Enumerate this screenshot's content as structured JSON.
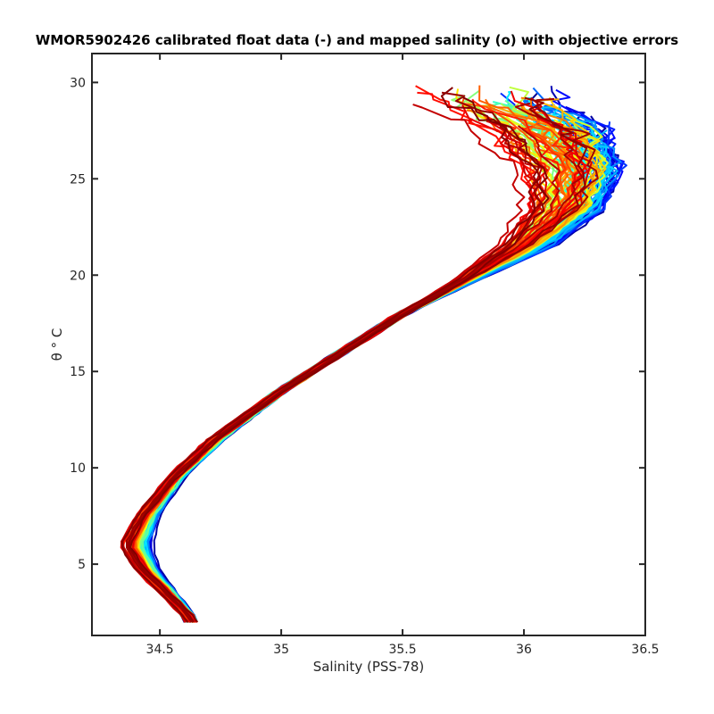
{
  "chart_data": {
    "type": "line",
    "title": "WMOR5902426 calibrated float data (-) and mapped salinity (o) with objective errors",
    "xlabel": "Salinity (PSS-78)",
    "ylabel": "θ ° C",
    "xlim": [
      34.22,
      36.5
    ],
    "ylim": [
      1.3,
      31.5
    ],
    "xticks": [
      34.5,
      35,
      35.5,
      36,
      36.5
    ],
    "yticks": [
      5,
      10,
      15,
      20,
      25,
      30
    ],
    "xtick_labels": [
      "34.5",
      "35",
      "35.5",
      "36",
      "36.5"
    ],
    "ytick_labels": [
      "5",
      "10",
      "15",
      "20",
      "25",
      "30"
    ],
    "grid": false,
    "legend": "none",
    "colormap": "jet",
    "profile_count": 120,
    "representative_profile_early": {
      "salinity": [
        34.63,
        34.55,
        34.48,
        34.45,
        34.48,
        34.58,
        34.75,
        35.0,
        35.25,
        35.5,
        35.8,
        36.1,
        36.3,
        36.35,
        36.28,
        36.1
      ],
      "theta": [
        2.1,
        3.5,
        4.7,
        6.0,
        7.5,
        9.5,
        11.5,
        14.0,
        16.0,
        18.0,
        19.8,
        21.5,
        23.5,
        25.5,
        27.5,
        29.0
      ]
    },
    "representative_profile_late": {
      "salinity": [
        34.63,
        34.52,
        34.42,
        34.35,
        34.42,
        34.55,
        34.72,
        35.0,
        35.25,
        35.5,
        35.75,
        35.95,
        36.1,
        36.12,
        36.0,
        35.8
      ],
      "theta": [
        2.1,
        3.5,
        4.8,
        6.0,
        7.5,
        9.5,
        11.5,
        14.0,
        16.0,
        18.0,
        19.8,
        21.5,
        23.5,
        25.5,
        27.5,
        29.0
      ]
    }
  }
}
